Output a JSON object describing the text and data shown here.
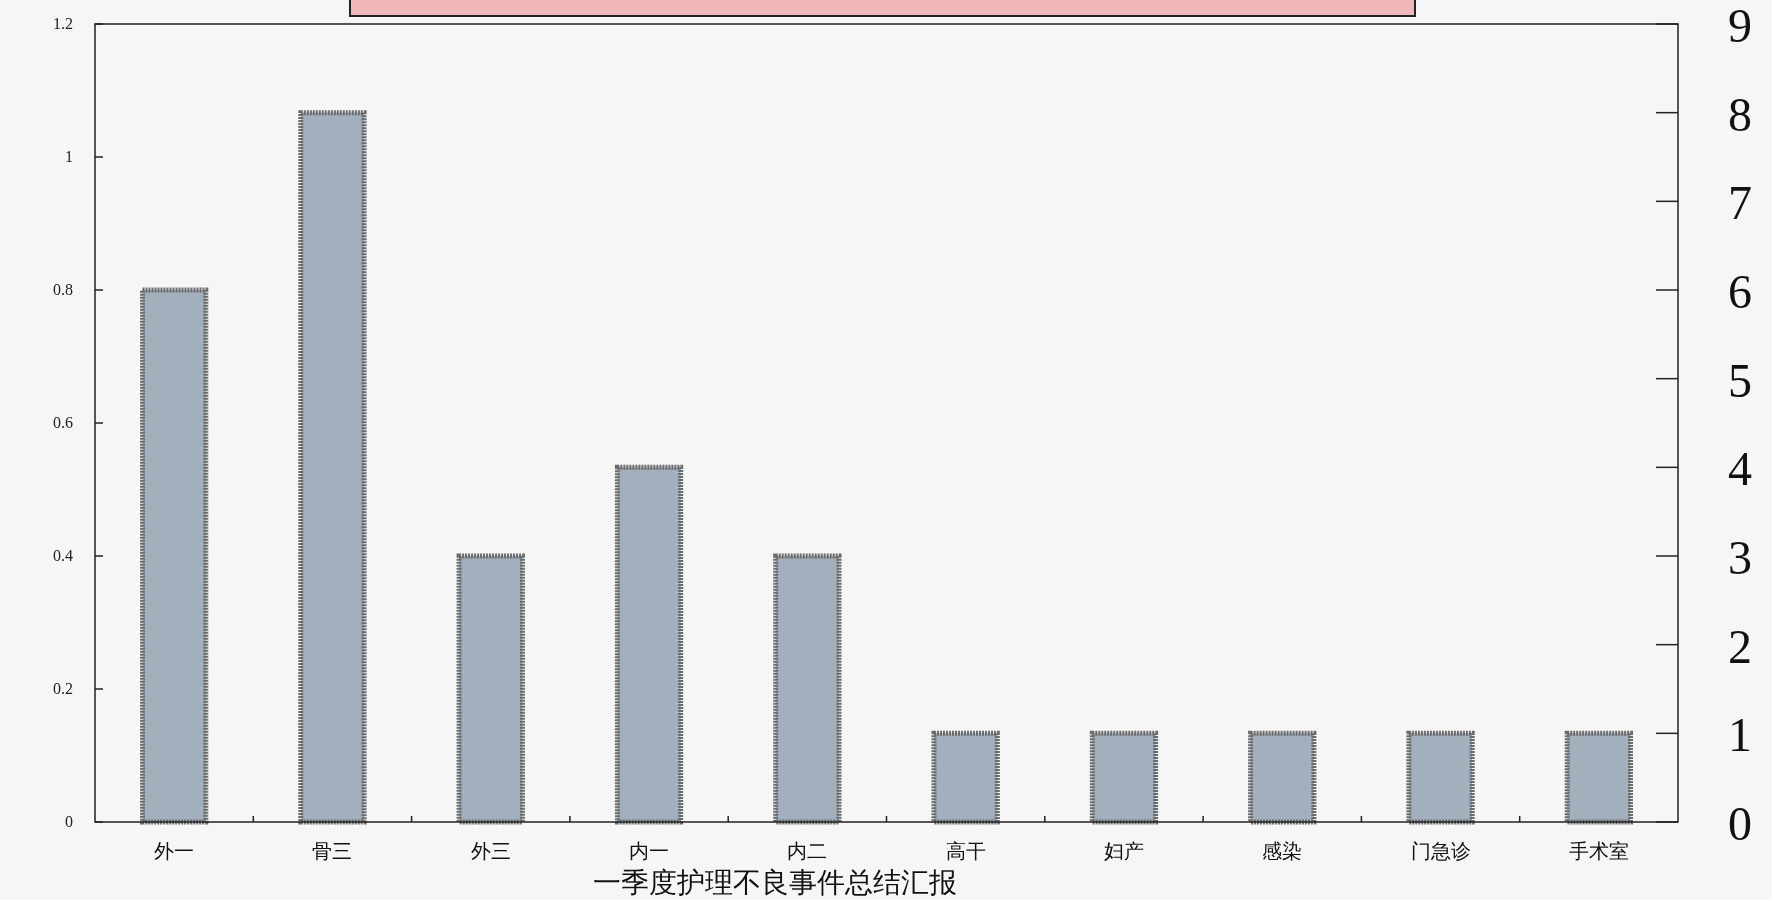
{
  "chart_data": {
    "type": "bar",
    "xlabel": "一季度护理不良事件总结汇报",
    "categories": [
      "外一",
      "骨三",
      "外三",
      "内一",
      "内二",
      "高干",
      "妇产",
      "感染",
      "门急诊",
      "手术室"
    ],
    "series": [
      {
        "axis": "y2",
        "color": "#a2b0be",
        "values": [
          6,
          8,
          3,
          4,
          3,
          1,
          1,
          1,
          1,
          1
        ]
      }
    ],
    "ylim": [
      0,
      1.2
    ],
    "yticks": [
      0,
      0.2,
      0.4,
      0.6,
      0.8,
      1,
      1.2
    ],
    "y2lim": [
      0,
      9
    ],
    "y2ticks": [
      0,
      1,
      2,
      3,
      4,
      5,
      6,
      7,
      8,
      9
    ],
    "grid": false
  }
}
